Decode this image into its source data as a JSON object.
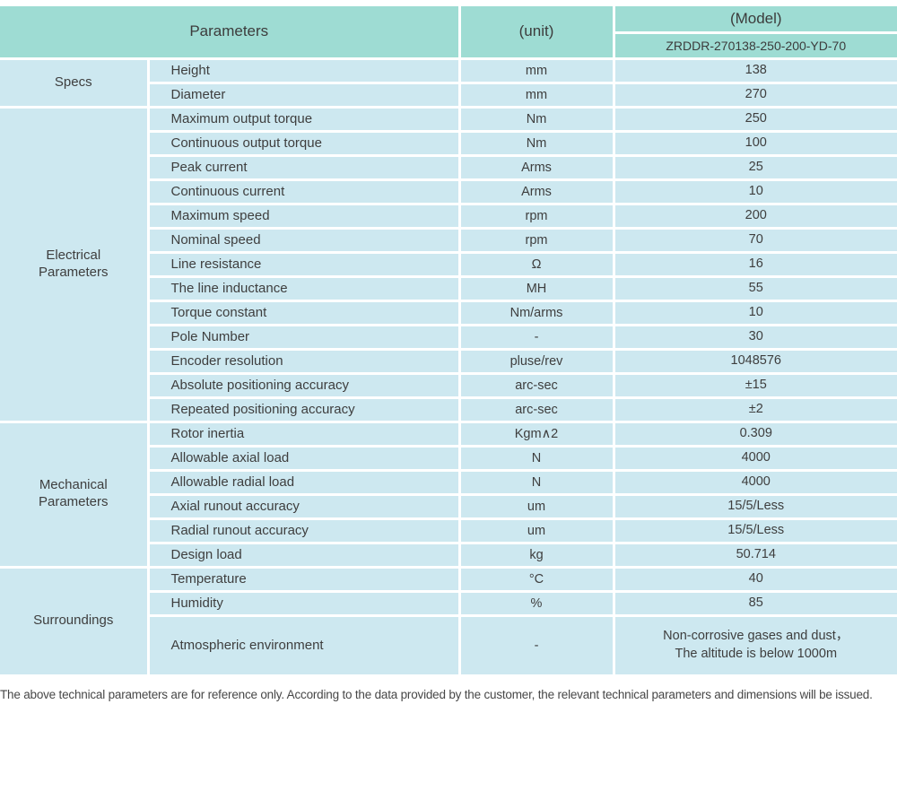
{
  "colors": {
    "header_bg": "#9edcd3",
    "row_bg": "#cde8f0",
    "border": "#ffffff",
    "text": "#3e3e3e"
  },
  "header": {
    "parameters_label": "Parameters",
    "unit_label": "(unit)",
    "model_label": "(Model)",
    "model_value": "ZRDDR-270138-250-200-YD-70"
  },
  "sections": [
    {
      "id": "specs",
      "name": "Specs",
      "rows": [
        {
          "param": "Height",
          "unit": "mm",
          "value": "138"
        },
        {
          "param": "Diameter",
          "unit": "mm",
          "value": "270"
        }
      ]
    },
    {
      "id": "electrical-parameters",
      "name": "Electrical Parameters",
      "rows": [
        {
          "param": "Maximum output torque",
          "unit": "Nm",
          "value": "250"
        },
        {
          "param": "Continuous output torque",
          "unit": "Nm",
          "value": "100"
        },
        {
          "param": "Peak current",
          "unit": "Arms",
          "value": "25"
        },
        {
          "param": "Continuous current",
          "unit": "Arms",
          "value": "10"
        },
        {
          "param": "Maximum speed",
          "unit": "rpm",
          "value": "200"
        },
        {
          "param": "Nominal speed",
          "unit": "rpm",
          "value": "70"
        },
        {
          "param": "Line resistance",
          "unit": "Ω",
          "value": "16"
        },
        {
          "param": "The line inductance",
          "unit": "MH",
          "value": "55"
        },
        {
          "param": "Torque constant",
          "unit": "Nm/arms",
          "value": "10"
        },
        {
          "param": "Pole Number",
          "unit": "-",
          "value": "30"
        },
        {
          "param": "Encoder resolution",
          "unit": "pluse/rev",
          "value": "1048576"
        },
        {
          "param": "Absolute positioning accuracy",
          "unit": "arc-sec",
          "value": "±15"
        },
        {
          "param": "Repeated positioning accuracy",
          "unit": "arc-sec",
          "value": "±2"
        }
      ]
    },
    {
      "id": "mechanical-parameters",
      "name": "Mechanical Parameters",
      "rows": [
        {
          "param": "Rotor inertia",
          "unit": "Kgm∧2",
          "value": "0.309"
        },
        {
          "param": "Allowable axial load",
          "unit": "N",
          "value": "4000"
        },
        {
          "param": "Allowable radial load",
          "unit": "N",
          "value": "4000"
        },
        {
          "param": "Axial runout accuracy",
          "unit": "um",
          "value": "15/5/Less"
        },
        {
          "param": "Radial runout accuracy",
          "unit": "um",
          "value": "15/5/Less"
        },
        {
          "param": "Design load",
          "unit": "kg",
          "value": "50.714"
        }
      ]
    },
    {
      "id": "surroundings",
      "name": "Surroundings",
      "rows": [
        {
          "param": "Temperature",
          "unit": "°C",
          "value": "40"
        },
        {
          "param": "Humidity",
          "unit": "%",
          "value": "85"
        },
        {
          "param": "Atmospheric environment",
          "unit": "-",
          "value": "Non-corrosive gases and dust，\nThe altitude is below 1000m",
          "tall": true
        }
      ]
    }
  ],
  "footer": {
    "note": "The above technical parameters are for reference only. According to the data provided by the customer, the relevant technical parameters and dimensions will be issued."
  }
}
